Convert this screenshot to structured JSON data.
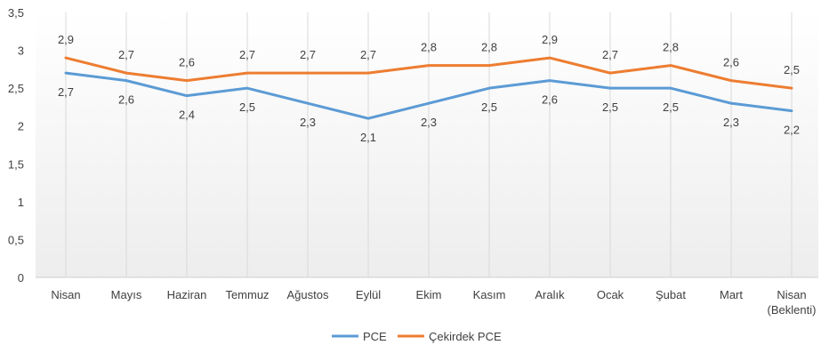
{
  "chart_data": {
    "type": "line",
    "categories": [
      "Nisan",
      "Mayıs",
      "Haziran",
      "Temmuz",
      "Ağustos",
      "Eylül",
      "Ekim",
      "Kasım",
      "Aralık",
      "Ocak",
      "Şubat",
      "Mart",
      "Nisan\n(Beklenti)"
    ],
    "series": [
      {
        "name": "PCE",
        "color": "#5B9BD5",
        "values": [
          2.7,
          2.6,
          2.4,
          2.5,
          2.3,
          2.1,
          2.3,
          2.5,
          2.6,
          2.5,
          2.5,
          2.3,
          2.2
        ],
        "label_position": "below"
      },
      {
        "name": "Çekirdek PCE",
        "color": "#ED7D31",
        "values": [
          2.9,
          2.7,
          2.6,
          2.7,
          2.7,
          2.7,
          2.8,
          2.8,
          2.9,
          2.7,
          2.8,
          2.6,
          2.5
        ],
        "label_position": "above"
      }
    ],
    "ylim": [
      0,
      3.5
    ],
    "yticks": [
      "0",
      "0,5",
      "1",
      "1,5",
      "2",
      "2,5",
      "3",
      "3,5"
    ],
    "grid": "vertical-category-lines",
    "legend": "bottom-center",
    "decimal_separator": ","
  }
}
